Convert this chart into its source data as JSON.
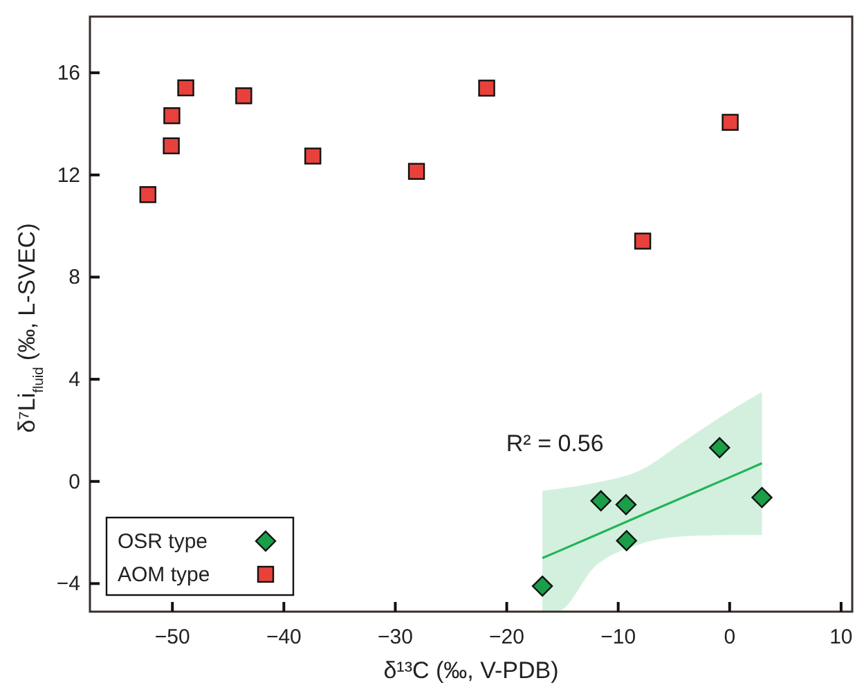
{
  "chart_data": {
    "type": "scatter",
    "xlabel": "δ¹³C (‰, V-PDB)",
    "ylabel": "δ⁷Li$_{fluid}$ (‰, L-SVEC)",
    "xlim": [
      -57.4,
      11
    ],
    "ylim": [
      -5.1,
      18.2
    ],
    "xticks": [
      -50,
      -40,
      -30,
      -20,
      -10,
      0,
      10
    ],
    "yticks": [
      -4,
      0,
      4,
      8,
      12,
      16
    ],
    "grid": false,
    "legend": "bottom left",
    "series": [
      {
        "name": "OSR type",
        "marker": "diamond",
        "color": "#1a9e48",
        "x": [
          -16.8,
          -11.55,
          -9.3,
          -9.25,
          -0.9,
          2.9
        ],
        "values": [
          -4.1,
          -0.76,
          -0.91,
          -2.32,
          1.32,
          -0.63
        ]
      },
      {
        "name": "AOM type",
        "marker": "square",
        "color": "#e8413c",
        "x": [
          -52.2,
          -50.1,
          -50.05,
          -48.8,
          -43.6,
          -37.4,
          -28.1,
          -21.8,
          -7.8,
          0.05
        ],
        "values": [
          11.23,
          13.14,
          14.32,
          15.41,
          15.1,
          12.74,
          12.14,
          15.4,
          9.41,
          14.06
        ]
      },
      {
        "type": "line",
        "marker": "none",
        "color": "#22b35a",
        "x": [
          -16.8,
          -15.5,
          -12,
          -8,
          -4,
          0,
          2.9
        ],
        "values": [
          -3.0,
          -2.76,
          -2.1,
          -1.34,
          -0.59,
          0.16,
          0.71
        ],
        "lower": [
          -5.1,
          -5.1,
          -3.3,
          -2.45,
          -2.15,
          -2.1,
          -2.1
        ],
        "upper": [
          -0.37,
          -0.3,
          -0.05,
          0.44,
          1.6,
          2.75,
          3.5
        ]
      }
    ],
    "annotations": [
      "R² = 0.56"
    ]
  }
}
